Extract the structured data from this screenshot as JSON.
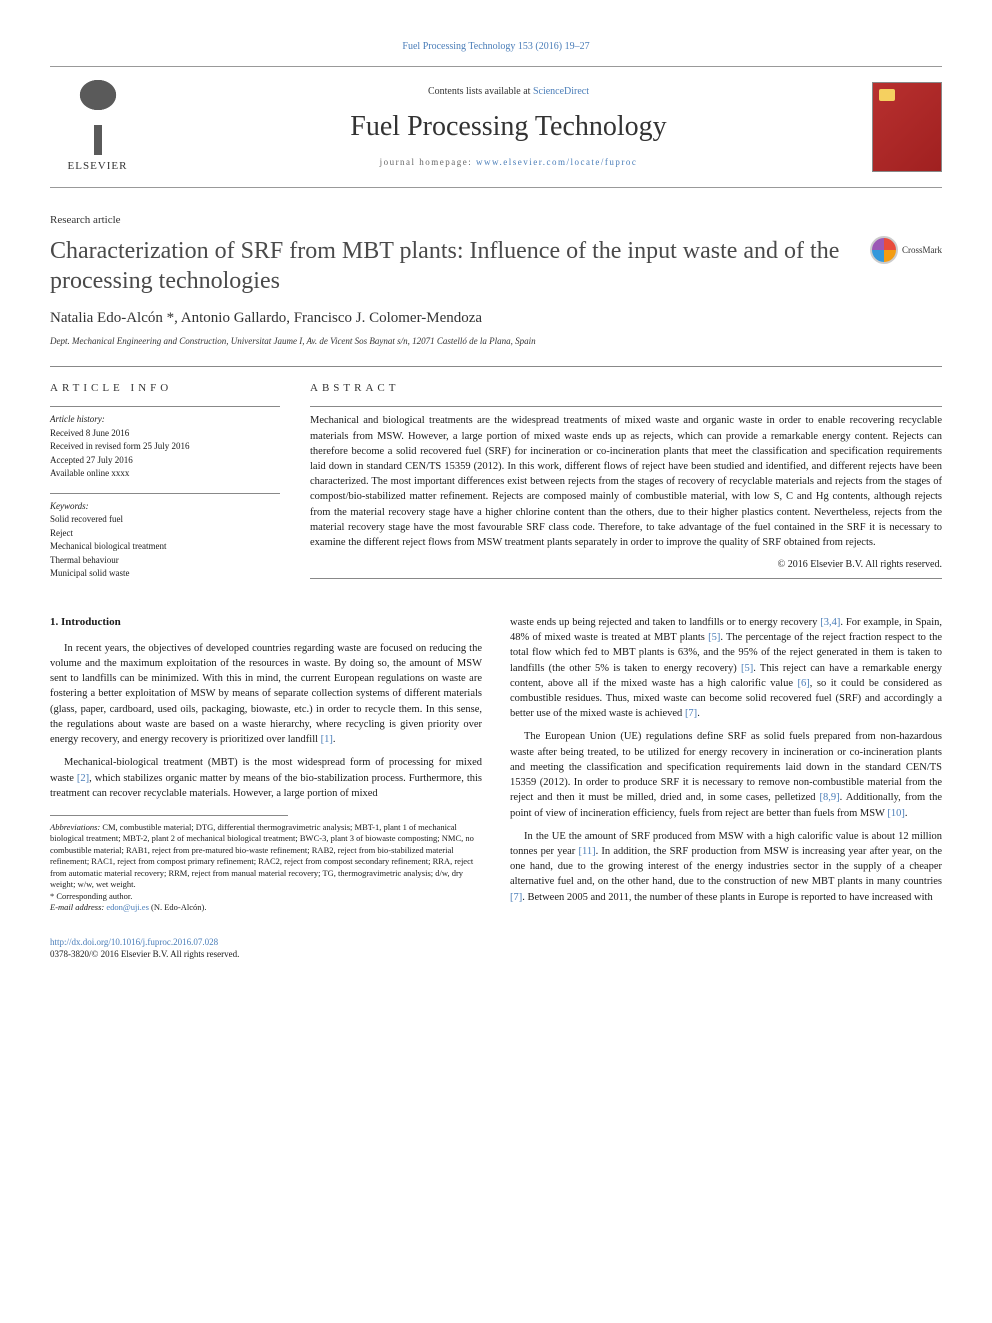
{
  "top_link_prefix": "Fuel Processing Technology 153 (2016) 19–27",
  "header": {
    "contents_text": "Contents lists available at ",
    "contents_link": "ScienceDirect",
    "journal_name": "Fuel Processing Technology",
    "homepage_label": "journal homepage: ",
    "homepage_url": "www.elsevier.com/locate/fuproc",
    "elsevier_label": "ELSEVIER"
  },
  "article": {
    "type": "Research article",
    "title": "Characterization of SRF from MBT plants: Influence of the input waste and of the processing technologies",
    "authors_html": "Natalia Edo-Alcón *, Antonio Gallardo, Francisco J. Colomer-Mendoza",
    "affiliation": "Dept. Mechanical Engineering and Construction, Universitat Jaume I, Av. de Vicent Sos Baynat s/n, 12071 Castelló de la Plana, Spain",
    "crossmark_label": "CrossMark"
  },
  "info": {
    "heading": "ARTICLE INFO",
    "history_label": "Article history:",
    "history": [
      "Received 8 June 2016",
      "Received in revised form 25 July 2016",
      "Accepted 27 July 2016",
      "Available online xxxx"
    ],
    "keywords_label": "Keywords:",
    "keywords": [
      "Solid recovered fuel",
      "Reject",
      "Mechanical biological treatment",
      "Thermal behaviour",
      "Municipal solid waste"
    ]
  },
  "abstract": {
    "heading": "ABSTRACT",
    "text": "Mechanical and biological treatments are the widespread treatments of mixed waste and organic waste in order to enable recovering recyclable materials from MSW. However, a large portion of mixed waste ends up as rejects, which can provide a remarkable energy content. Rejects can therefore become a solid recovered fuel (SRF) for incineration or co-incineration plants that meet the classification and specification requirements laid down in standard CEN/TS 15359 (2012). In this work, different flows of reject have been studied and identified, and different rejects have been characterized. The most important differences exist between rejects from the stages of recovery of recyclable materials and rejects from the stages of compost/bio-stabilized matter refinement. Rejects are composed mainly of combustible material, with low S, C and Hg contents, although rejects from the material recovery stage have a higher chlorine content than the others, due to their higher plastics content. Nevertheless, rejects from the material recovery stage have the most favourable SRF class code. Therefore, to take advantage of the fuel contained in the SRF it is necessary to examine the different reject flows from MSW treatment plants separately in order to improve the quality of SRF obtained from rejects.",
    "copyright": "© 2016 Elsevier B.V. All rights reserved."
  },
  "body": {
    "section_heading": "1. Introduction",
    "left": [
      "In recent years, the objectives of developed countries regarding waste are focused on reducing the volume and the maximum exploitation of the resources in waste. By doing so, the amount of MSW sent to landfills can be minimized. With this in mind, the current European regulations on waste are fostering a better exploitation of MSW by means of separate collection systems of different materials (glass, paper, cardboard, used oils, packaging, biowaste, etc.) in order to recycle them. In this sense, the regulations about waste are based on a waste hierarchy, where recycling is given priority over energy recovery, and energy recovery is prioritized over landfill [1].",
      "Mechanical-biological treatment (MBT) is the most widespread form of processing for mixed waste [2], which stabilizes organic matter by means of the bio-stabilization process. Furthermore, this treatment can recover recyclable materials. However, a large portion of mixed"
    ],
    "right": [
      "waste ends up being rejected and taken to landfills or to energy recovery [3,4]. For example, in Spain, 48% of mixed waste is treated at MBT plants [5]. The percentage of the reject fraction respect to the total flow which fed to MBT plants is 63%, and the 95% of the reject generated in them is taken to landfills (the other 5% is taken to energy recovery) [5]. This reject can have a remarkable energy content, above all if the mixed waste has a high calorific value [6], so it could be considered as combustible residues. Thus, mixed waste can become solid recovered fuel (SRF) and accordingly a better use of the mixed waste is achieved [7].",
      "The European Union (UE) regulations define SRF as solid fuels prepared from non-hazardous waste after being treated, to be utilized for energy recovery in incineration or co-incineration plants and meeting the classification and specification requirements laid down in the standard CEN/TS 15359 (2012). In order to produce SRF it is necessary to remove non-combustible material from the reject and then it must be milled, dried and, in some cases, pelletized [8,9]. Additionally, from the point of view of incineration efficiency, fuels from reject are better than fuels from MSW [10].",
      "In the UE the amount of SRF produced from MSW with a high calorific value is about 12 million tonnes per year [11]. In addition, the SRF production from MSW is increasing year after year, on the one hand, due to the growing interest of the energy industries sector in the supply of a cheaper alternative fuel and, on the other hand, due to the construction of new MBT plants in many countries [7]. Between 2005 and 2011, the number of these plants in Europe is reported to have increased with"
    ]
  },
  "footnotes": {
    "abbrev_label": "Abbreviations:",
    "abbrev_text": " CM, combustible material; DTG, differential thermogravimetric analysis; MBT-1, plant 1 of mechanical biological treatment; MBT-2, plant 2 of mechanical biological treatment; BWC-3, plant 3 of biowaste composting; NMC, no combustible material; RAB1, reject from pre-matured bio-waste refinement; RAB2, reject from bio-stabilized material refinement; RAC1, reject from compost primary refinement; RAC2, reject from compost secondary refinement; RRA, reject from automatic material recovery; RRM, reject from manual material recovery; TG, thermogravimetric analysis; d/w, dry weight; w/w, wet weight.",
    "corresponding": "* Corresponding author.",
    "email_label": "E-mail address: ",
    "email": "edon@uji.es",
    "email_suffix": " (N. Edo-Alcón)."
  },
  "footer": {
    "doi": "http://dx.doi.org/10.1016/j.fuproc.2016.07.028",
    "issn_line": "0378-3820/© 2016 Elsevier B.V. All rights reserved."
  },
  "colors": {
    "link": "#4a7db8",
    "text": "#1a1a1a",
    "rule": "#888888",
    "cover_bg": "#b8302f"
  }
}
